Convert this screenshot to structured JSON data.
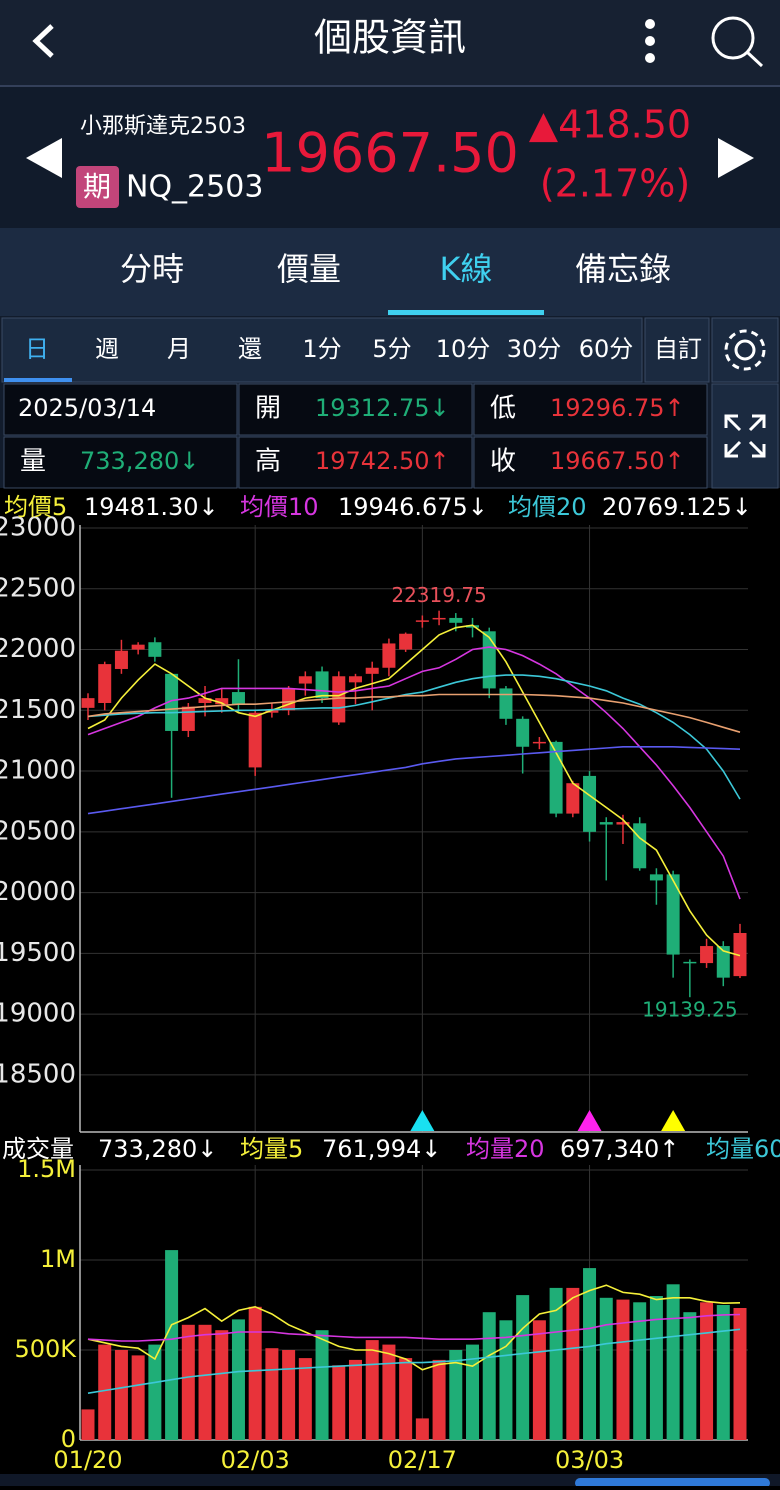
{
  "header": {
    "title": "個股資訊"
  },
  "quote": {
    "name": "小那斯達克2503",
    "badge": "期",
    "code": "NQ_2503",
    "price": "19667.50",
    "change": "▲418.50",
    "change_pct": "(2.17%)"
  },
  "tabs": [
    "分時",
    "價量",
    "K線",
    "備忘錄"
  ],
  "active_tab": 2,
  "periods": [
    "日",
    "週",
    "月",
    "還",
    "1分",
    "5分",
    "10分",
    "30分",
    "60分"
  ],
  "active_period": 0,
  "custom": "自訂",
  "info": {
    "date": "2025/03/14",
    "cells": [
      {
        "label": "開",
        "value": "19312.75↓",
        "color": "#1fae77"
      },
      {
        "label": "低",
        "value": "19296.75↑",
        "color": "#e8333a"
      },
      {
        "label": "量",
        "value": "733,280↓",
        "color": "#1fae77"
      },
      {
        "label": "高",
        "value": "19742.50↑",
        "color": "#e8333a"
      },
      {
        "label": "收",
        "value": "19667.50↑",
        "color": "#e8333a"
      }
    ]
  },
  "chart_data": [
    {
      "type": "candlestick",
      "up_color": "#e8333a",
      "down_color": "#1fae77",
      "grid": true,
      "ylim": [
        18030,
        23000
      ],
      "yticks": [
        23000,
        22500,
        22000,
        21500,
        21000,
        20500,
        20000,
        19500,
        19000,
        18500
      ],
      "open": [
        21520,
        21560,
        21840,
        22000,
        22060,
        21800,
        21330,
        21560,
        21550,
        21650,
        21030,
        21480,
        21500,
        21720,
        21820,
        21400,
        21730,
        21800,
        21850,
        22000,
        22230,
        22250,
        22260,
        22200,
        22150,
        21680,
        21430,
        21230,
        21240,
        20650,
        20960,
        20580,
        20560,
        20570,
        20150,
        20150,
        19430,
        19420,
        19560,
        19312.75
      ],
      "high": [
        21640,
        21900,
        22080,
        22060,
        22100,
        21800,
        21560,
        21700,
        21680,
        21920,
        21500,
        21560,
        21700,
        21820,
        21860,
        21820,
        21800,
        21900,
        22090,
        22140,
        22280,
        22319.75,
        22300,
        22260,
        22180,
        21700,
        21450,
        21280,
        21250,
        20920,
        21000,
        20620,
        20640,
        20620,
        20200,
        20180,
        19450,
        19620,
        19600,
        19742.5
      ],
      "low": [
        21420,
        21500,
        21800,
        21960,
        21900,
        20780,
        21280,
        21450,
        21480,
        21480,
        20960,
        21440,
        21460,
        21620,
        21560,
        21380,
        21550,
        21500,
        21780,
        21980,
        22180,
        22200,
        22150,
        22100,
        21600,
        21380,
        20980,
        21180,
        20620,
        20620,
        20420,
        20100,
        20400,
        20180,
        19900,
        19300,
        19139.25,
        19380,
        19230,
        19296.75
      ],
      "close": [
        21600,
        21880,
        21990,
        22040,
        21940,
        21330,
        21530,
        21600,
        21600,
        21550,
        21480,
        21500,
        21680,
        21780,
        21600,
        21780,
        21780,
        21850,
        22050,
        22130,
        22240,
        22260,
        22220,
        22180,
        21680,
        21430,
        21200,
        21240,
        20650,
        20900,
        20500,
        20560,
        20580,
        20200,
        20100,
        19490,
        19420,
        19560,
        19300,
        19667.5
      ],
      "series": [
        {
          "name": "均價5",
          "legend_value": "19481.30↓",
          "color": "#f5f03a",
          "values": [
            21350,
            21420,
            21600,
            21750,
            21880,
            21800,
            21700,
            21600,
            21560,
            21480,
            21450,
            21500,
            21550,
            21600,
            21620,
            21620,
            21680,
            21720,
            21760,
            21880,
            22000,
            22120,
            22180,
            22200,
            22100,
            21900,
            21650,
            21400,
            21150,
            20900,
            20800,
            20700,
            20600,
            20450,
            20350,
            20100,
            19850,
            19650,
            19520,
            19481.3
          ]
        },
        {
          "name": "均價10",
          "legend_value": "19946.675↓",
          "color": "#d636e0",
          "values": [
            21300,
            21350,
            21400,
            21450,
            21520,
            21580,
            21600,
            21640,
            21680,
            21680,
            21680,
            21680,
            21680,
            21670,
            21660,
            21650,
            21660,
            21680,
            21700,
            21760,
            21820,
            21850,
            21920,
            22000,
            22020,
            22000,
            21950,
            21880,
            21800,
            21700,
            21600,
            21480,
            21350,
            21200,
            21050,
            20880,
            20700,
            20500,
            20300,
            19946.675
          ]
        },
        {
          "name": "均價20",
          "legend_value": "20769.125↓",
          "color": "#3cc8d8",
          "values": [
            21450,
            21460,
            21470,
            21475,
            21480,
            21480,
            21485,
            21490,
            21495,
            21500,
            21500,
            21505,
            21510,
            21515,
            21520,
            21520,
            21540,
            21570,
            21600,
            21630,
            21650,
            21690,
            21730,
            21760,
            21780,
            21790,
            21790,
            21780,
            21760,
            21730,
            21700,
            21660,
            21600,
            21550,
            21480,
            21400,
            21300,
            21180,
            21000,
            20769.125
          ]
        },
        {
          "color": "#5a5af0",
          "values": [
            20650,
            20670,
            20690,
            20710,
            20730,
            20750,
            20770,
            20790,
            20810,
            20830,
            20850,
            20870,
            20890,
            20910,
            20930,
            20950,
            20970,
            20990,
            21010,
            21030,
            21060,
            21080,
            21100,
            21110,
            21120,
            21130,
            21140,
            21150,
            21160,
            21170,
            21180,
            21190,
            21200,
            21200,
            21200,
            21200,
            21195,
            21190,
            21185,
            21180
          ]
        },
        {
          "color": "#e8a070",
          "values": [
            21450,
            21470,
            21480,
            21490,
            21500,
            21510,
            21520,
            21530,
            21540,
            21550,
            21550,
            21560,
            21570,
            21580,
            21590,
            21600,
            21600,
            21610,
            21610,
            21620,
            21620,
            21630,
            21630,
            21630,
            21630,
            21630,
            21630,
            21625,
            21620,
            21610,
            21600,
            21580,
            21560,
            21530,
            21500,
            21470,
            21440,
            21400,
            21360,
            21320
          ]
        }
      ],
      "annotations": [
        {
          "label": "22319.75",
          "value": 22319.75,
          "at": 21,
          "color": "#e8505a"
        },
        {
          "label": "19139.25",
          "value": 19139.25,
          "at": 36,
          "color": "#1fae77"
        }
      ],
      "signals": [
        {
          "at": 20,
          "color": "#19e0f0"
        },
        {
          "at": 30,
          "color": "#ff22ee"
        },
        {
          "at": 35,
          "color": "#ffff00"
        }
      ]
    },
    {
      "type": "bar",
      "title": "成交量",
      "legend_value": "733,280↓",
      "grid": true,
      "categories": [
        "01/20",
        null,
        null,
        null,
        null,
        null,
        null,
        null,
        null,
        null,
        "02/03",
        null,
        null,
        null,
        null,
        null,
        null,
        null,
        null,
        null,
        "02/17",
        null,
        null,
        null,
        null,
        null,
        null,
        null,
        null,
        null,
        "03/03",
        null,
        null,
        null,
        null,
        null,
        null,
        null,
        null,
        null
      ],
      "ylim": [
        0,
        1500000
      ],
      "yticks": [
        {
          "value": 1500000,
          "label": "1.5M"
        },
        {
          "value": 1000000,
          "label": "1M"
        },
        {
          "value": 500000,
          "label": "500K"
        },
        0
      ],
      "values": [
        170000,
        530000,
        500000,
        470000,
        530000,
        1055000,
        640000,
        640000,
        610000,
        670000,
        740000,
        510000,
        500000,
        455000,
        610000,
        415000,
        445000,
        555000,
        530000,
        455000,
        120000,
        445000,
        500000,
        530000,
        710000,
        665000,
        805000,
        665000,
        845000,
        845000,
        955000,
        790000,
        780000,
        765000,
        800000,
        865000,
        710000,
        765000,
        750000,
        733280
      ],
      "series": [
        {
          "name": "均量5",
          "legend_value": "761,994↓",
          "color": "#f5f03a",
          "values": [
            560000,
            540000,
            520000,
            510000,
            450000,
            640000,
            680000,
            730000,
            660000,
            720000,
            740000,
            700000,
            640000,
            600000,
            560000,
            520000,
            500000,
            500000,
            480000,
            450000,
            390000,
            420000,
            430000,
            410000,
            470000,
            520000,
            620000,
            700000,
            720000,
            790000,
            830000,
            860000,
            820000,
            810000,
            780000,
            790000,
            790000,
            770000,
            760000,
            761994
          ]
        },
        {
          "name": "均量20",
          "legend_value": "697,340↑",
          "color": "#d636e0",
          "values": [
            560000,
            555000,
            550000,
            550000,
            555000,
            560000,
            575000,
            585000,
            590000,
            600000,
            600000,
            600000,
            590000,
            585000,
            580000,
            575000,
            570000,
            570000,
            570000,
            570000,
            565000,
            560000,
            560000,
            560000,
            565000,
            570000,
            580000,
            590000,
            600000,
            610000,
            620000,
            640000,
            650000,
            660000,
            670000,
            675000,
            680000,
            690000,
            695000,
            697340
          ]
        },
        {
          "name": "均量60",
          "color": "#3cc8d8",
          "values": [
            260000,
            275000,
            290000,
            305000,
            320000,
            335000,
            350000,
            360000,
            370000,
            380000,
            385000,
            390000,
            395000,
            400000,
            405000,
            410000,
            415000,
            420000,
            425000,
            430000,
            430000,
            435000,
            440000,
            450000,
            460000,
            470000,
            480000,
            490000,
            500000,
            510000,
            520000,
            535000,
            545000,
            555000,
            565000,
            575000,
            585000,
            595000,
            605000,
            615000
          ]
        }
      ]
    }
  ]
}
